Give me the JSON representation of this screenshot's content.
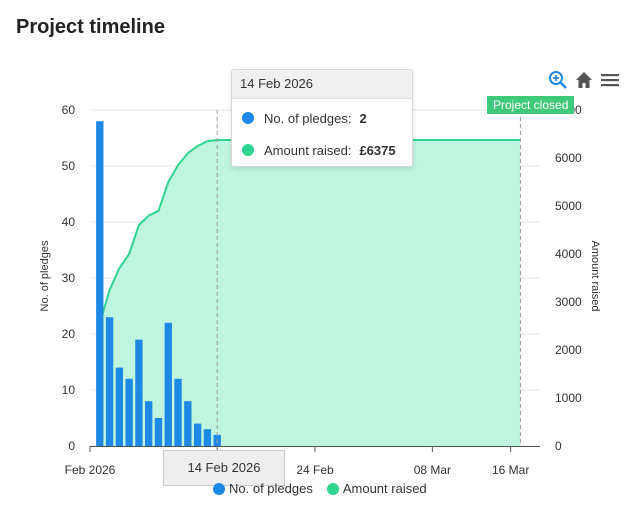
{
  "title": "Project timeline",
  "colors": {
    "pledges": "#1e88e5",
    "amount_line": "#2fd48f",
    "amount_fill": "#b9f4dd",
    "closed": "#41c97b"
  },
  "toolbar": {
    "zoom_icon": "zoom-in-icon",
    "home_icon": "home-icon",
    "menu_icon": "hamburger-menu-icon"
  },
  "tooltip": {
    "date": "14 Feb 2026",
    "rows": [
      {
        "name": "No. of pledges:",
        "value": "2"
      },
      {
        "name": "Amount raised:",
        "value": "£6375"
      }
    ]
  },
  "closed_label": "Project closed",
  "crosshair_label": "14 Feb 2026",
  "legend": [
    "No. of pledges",
    "Amount raised"
  ],
  "chart_data": {
    "type": "bar",
    "x_start": "2026-02-01",
    "x_ticks": [
      "Feb 2026",
      "14 Feb 2026",
      "24 Feb",
      "08 Mar",
      "16 Mar"
    ],
    "ylabel_left": "No. of pledges",
    "ylabel_right": "Amount raised",
    "ylim_left": [
      0,
      60
    ],
    "ylim_right": [
      0,
      7000
    ],
    "yticks_left": [
      0,
      10,
      20,
      30,
      40,
      50,
      60
    ],
    "yticks_right": [
      0,
      1000,
      2000,
      3000,
      4000,
      5000,
      6000,
      7000
    ],
    "grid": true,
    "series": [
      {
        "name": "No. of pledges",
        "type": "column",
        "axis": "left",
        "x": [
          "2026-02-02",
          "2026-02-03",
          "2026-02-04",
          "2026-02-05",
          "2026-02-06",
          "2026-02-07",
          "2026-02-08",
          "2026-02-09",
          "2026-02-10",
          "2026-02-11",
          "2026-02-12",
          "2026-02-13",
          "2026-02-14"
        ],
        "values": [
          58,
          23,
          14,
          12,
          19,
          8,
          5,
          22,
          12,
          8,
          4,
          3,
          2
        ]
      },
      {
        "name": "Amount raised",
        "type": "area",
        "axis": "right",
        "x": [
          "2026-02-02",
          "2026-02-03",
          "2026-02-04",
          "2026-02-05",
          "2026-02-06",
          "2026-02-07",
          "2026-02-08",
          "2026-02-09",
          "2026-02-10",
          "2026-02-11",
          "2026-02-12",
          "2026-02-13",
          "2026-02-14",
          "2026-03-17"
        ],
        "values": [
          2550,
          3250,
          3700,
          4000,
          4600,
          4800,
          4900,
          5500,
          5850,
          6100,
          6250,
          6350,
          6375,
          6375
        ]
      }
    ],
    "plot_lines": [
      {
        "date": "2026-02-14",
        "label": "14 Feb 2026"
      },
      {
        "date": "2026-03-17",
        "label": "Project closed"
      }
    ]
  }
}
